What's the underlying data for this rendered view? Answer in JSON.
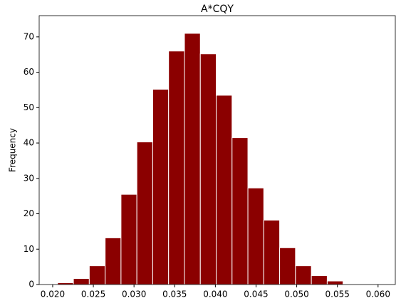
{
  "chart_data": {
    "type": "histogram",
    "title": "A*CQY",
    "ylabel": "Frequency",
    "bins": [
      0.0206,
      0.02255,
      0.0245,
      0.02645,
      0.0284,
      0.03035,
      0.0323,
      0.03425,
      0.0362,
      0.03815,
      0.0401,
      0.04205,
      0.044,
      0.04595,
      0.0479,
      0.04985,
      0.0518,
      0.05375,
      0.0557,
      0.05765
    ],
    "values": [
      0.5,
      1.7,
      5.3,
      13.2,
      25.5,
      40.3,
      55.2,
      66.0,
      71.0,
      65.2,
      53.5,
      41.5,
      27.3,
      18.2,
      10.4,
      5.3,
      2.5,
      1.0,
      0.2
    ],
    "color": "#8b0000",
    "xlim": [
      0.01834,
      0.06212
    ],
    "ylim": [
      0,
      76
    ],
    "xticks": [
      {
        "value": 0.02,
        "label": "0.020"
      },
      {
        "value": 0.025,
        "label": "0.025"
      },
      {
        "value": 0.03,
        "label": "0.030"
      },
      {
        "value": 0.035,
        "label": "0.035"
      },
      {
        "value": 0.04,
        "label": "0.040"
      },
      {
        "value": 0.045,
        "label": "0.045"
      },
      {
        "value": 0.05,
        "label": "0.050"
      },
      {
        "value": 0.055,
        "label": "0.055"
      },
      {
        "value": 0.06,
        "label": "0.060"
      }
    ],
    "yticks": [
      0,
      10,
      20,
      30,
      40,
      50,
      60,
      70
    ]
  }
}
